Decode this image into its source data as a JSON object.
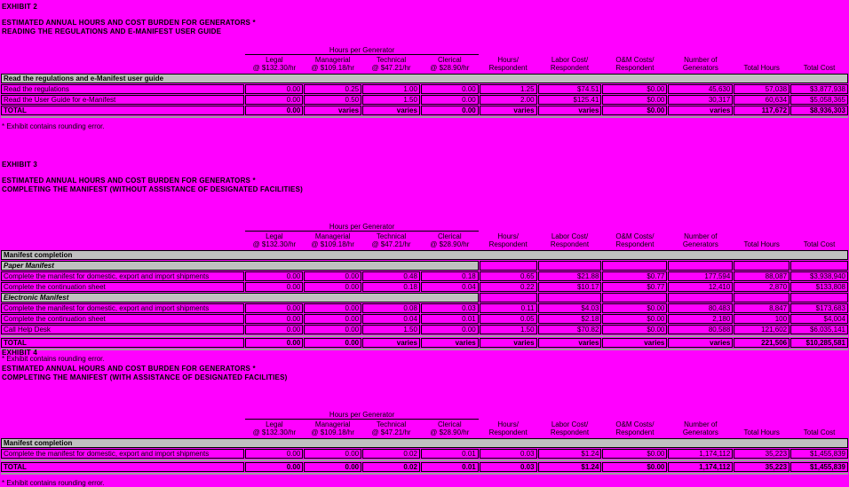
{
  "page": {
    "background_color": "#FF00FF",
    "band_color": "#C0C0C0",
    "border_color": "#000000"
  },
  "table_header": {
    "group_label": "Hours per Generator",
    "columns": [
      {
        "line1": "Legal",
        "line2": "@ $132.30/hr"
      },
      {
        "line1": "Managerial",
        "line2": "@ $109.18/hr"
      },
      {
        "line1": "Technical",
        "line2": "@ $47.21/hr"
      },
      {
        "line1": "Clerical",
        "line2": "@ $28.90/hr"
      },
      {
        "line1": "Hours/",
        "line2": "Respondent"
      },
      {
        "line1": "Labor Cost/",
        "line2": "Respondent"
      },
      {
        "line1": "O&M Costs/",
        "line2": "Respondent"
      },
      {
        "line1": "Number of",
        "line2": "Generators"
      },
      {
        "line1": "",
        "line2": "Total Hours"
      },
      {
        "line1": "",
        "line2": "Total Cost"
      }
    ]
  },
  "sections": [
    {
      "exhibit": "EXHIBIT 2",
      "title_line1": "ESTIMATED ANNUAL HOURS AND COST BURDEN FOR GENERATORS *",
      "title_line2": "READING THE REGULATIONS AND E-MANIFEST USER GUIDE",
      "rows": [
        {
          "kind": "band",
          "label": "Read the regulations and e-Manifest user guide"
        },
        {
          "kind": "row",
          "label": "Read the regulations",
          "values": [
            "0.00",
            "0.25",
            "1.00",
            "0.00",
            "1.25",
            "$74.51",
            "$0.00",
            "45,630",
            "57,038",
            "$3,877,938"
          ]
        },
        {
          "kind": "row",
          "label": "Read the User Guide for e-Manifest",
          "values": [
            "0.00",
            "0.50",
            "1.50",
            "0.00",
            "2.00",
            "$125.41",
            "$0.00",
            "30,317",
            "60,634",
            "$5,058,365"
          ]
        },
        {
          "kind": "total",
          "label": "TOTAL",
          "values": [
            "0.00",
            "varies",
            "varies",
            "0.00",
            "varies",
            "varies",
            "$0.00",
            "varies",
            "117,672",
            "$8,936,303"
          ]
        }
      ],
      "footnote": "* Exhibit contains rounding error."
    },
    {
      "exhibit": "EXHIBIT 3",
      "title_line1": "ESTIMATED ANNUAL HOURS AND COST BURDEN FOR GENERATORS *",
      "title_line2": "COMPLETING THE MANIFEST (WITHOUT ASSISTANCE OF DESIGNATED FACILITIES)",
      "rows": [
        {
          "kind": "band",
          "label": "Manifest completion"
        },
        {
          "kind": "subband",
          "label": "Paper Manifest"
        },
        {
          "kind": "row",
          "label": "Complete the manifest for domestic, export and import shipments",
          "values": [
            "0.00",
            "0.00",
            "0.48",
            "0.18",
            "0.65",
            "$21.88",
            "$0.77",
            "177,594",
            "88,087",
            "$3,938,940"
          ]
        },
        {
          "kind": "row",
          "label": "Complete the continuation sheet",
          "values": [
            "0.00",
            "0.00",
            "0.18",
            "0.04",
            "0.22",
            "$10.17",
            "$0.77",
            "12,410",
            "2,870",
            "$133,808"
          ]
        },
        {
          "kind": "subband",
          "label": "Electronic Manifest"
        },
        {
          "kind": "row",
          "label": "Complete the manifest for domestic, export and import shipments",
          "values": [
            "0.00",
            "0.00",
            "0.08",
            "0.03",
            "0.11",
            "$4.03",
            "$0.00",
            "80,483",
            "8,847",
            "$173,683"
          ]
        },
        {
          "kind": "row",
          "label": "Complete the continuation sheet",
          "values": [
            "0.00",
            "0.00",
            "0.04",
            "0.01",
            "0.05",
            "$2.18",
            "$0.00",
            "2,180",
            "100",
            "$4,004"
          ]
        },
        {
          "kind": "row",
          "label": "Call Help Desk",
          "values": [
            "0.00",
            "0.00",
            "1.50",
            "0.00",
            "1.50",
            "$70.82",
            "$0.00",
            "80,588",
            "121,602",
            "$6,035,141"
          ]
        },
        {
          "kind": "sep"
        },
        {
          "kind": "total",
          "label": "TOTAL",
          "values": [
            "0.00",
            "0.00",
            "varies",
            "varies",
            "varies",
            "varies",
            "varies",
            "varies",
            "221,506",
            "$10,285,581"
          ]
        }
      ],
      "footnote": "* Exhibit contains rounding error."
    },
    {
      "exhibit": "EXHIBIT 4",
      "title_line1": "ESTIMATED ANNUAL HOURS AND COST BURDEN FOR GENERATORS *",
      "title_line2": "COMPLETING THE MANIFEST (WITH ASSISTANCE OF DESIGNATED FACILITIES)",
      "rows": [
        {
          "kind": "band",
          "label": "Manifest completion"
        },
        {
          "kind": "row",
          "label": "Complete the manifest for domestic, export and import shipments",
          "values": [
            "0.00",
            "0.00",
            "0.02",
            "0.01",
            "0.03",
            "$1.24",
            "$0.00",
            "1,174,112",
            "35,223",
            "$1,455,839"
          ]
        },
        {
          "kind": "sep"
        },
        {
          "kind": "total",
          "label": "TOTAL",
          "values": [
            "0.00",
            "0.00",
            "0.02",
            "0.01",
            "0.03",
            "$1.24",
            "$0.00",
            "1,174,112",
            "35,223",
            "$1,455,839"
          ]
        }
      ],
      "footnote": "* Exhibit contains rounding error."
    }
  ]
}
